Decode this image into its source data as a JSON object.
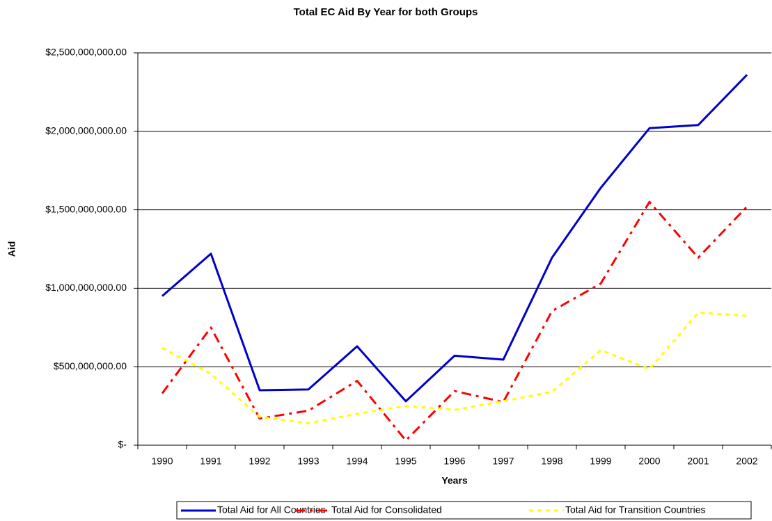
{
  "chart_data": {
    "type": "line",
    "title": "Total EC Aid By Year for both Groups",
    "x_label": "Years",
    "y_label": "Aid",
    "categories": [
      "1990",
      "1991",
      "1992",
      "1993",
      "1994",
      "1995",
      "1996",
      "1997",
      "1998",
      "1999",
      "2000",
      "2001",
      "2002"
    ],
    "series": [
      {
        "name": "Total Aid for All Countries",
        "color": "#0000cc",
        "dash": "none",
        "values": [
          950000000,
          1220000000,
          350000000,
          355000000,
          630000000,
          280000000,
          570000000,
          545000000,
          1195000000,
          1640000000,
          2020000000,
          2040000000,
          2360000000
        ]
      },
      {
        "name": "Total Aid for Consolidated",
        "color": "#ff0000",
        "dash": "14,7,4,7",
        "values": [
          330000000,
          750000000,
          170000000,
          220000000,
          410000000,
          30000000,
          345000000,
          275000000,
          855000000,
          1030000000,
          1550000000,
          1195000000,
          1520000000
        ]
      },
      {
        "name": "Total Aid for Transition Countries",
        "color": "#ffff00",
        "dash": "6,6",
        "values": [
          620000000,
          455000000,
          180000000,
          140000000,
          200000000,
          250000000,
          225000000,
          280000000,
          340000000,
          605000000,
          485000000,
          845000000,
          825000000
        ]
      }
    ],
    "ylim": [
      0,
      2500000000
    ],
    "yticks": [
      {
        "value": 0,
        "label": "$-"
      },
      {
        "value": 500000000,
        "label": "$500,000,000.00"
      },
      {
        "value": 1000000000,
        "label": "$1,000,000,000.00"
      },
      {
        "value": 1500000000,
        "label": "$1,500,000,000.00"
      },
      {
        "value": 2000000000,
        "label": "$2,000,000,000.00"
      },
      {
        "value": 2500000000,
        "label": "$2,500,000,000.00"
      }
    ],
    "grid": true,
    "legend": "bottom"
  }
}
